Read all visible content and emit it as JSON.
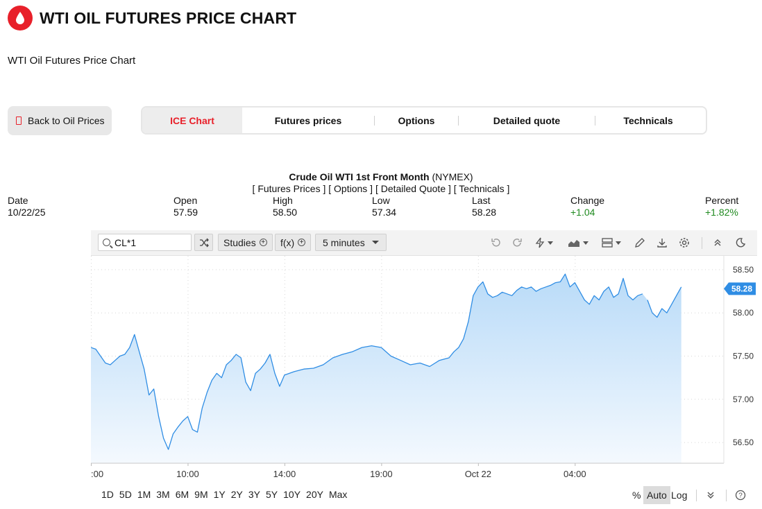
{
  "header": {
    "logo_icon": "oil-drop-icon",
    "title": "WTI OIL FUTURES PRICE CHART",
    "subtitle": "WTI Oil Futures Price Chart",
    "accent_color": "#e8202a"
  },
  "back_button": {
    "label": "Back to Oil Prices"
  },
  "tabs": [
    {
      "label": "ICE Chart",
      "active": true
    },
    {
      "label": "Futures prices"
    },
    {
      "label": "Options"
    },
    {
      "label": "Detailed quote"
    },
    {
      "label": "Technicals"
    }
  ],
  "chart_header": {
    "name": "Crude Oil WTI 1st Front Month",
    "exchange": "(NYMEX)",
    "links": "[ Futures Prices ] [ Options ] [ Detailed Quote ] [ Technicals ]"
  },
  "quote": {
    "date_label": "Date",
    "date": "10/22/25",
    "open_label": "Open",
    "open": "57.59",
    "high_label": "High",
    "high": "58.50",
    "low_label": "Low",
    "low": "57.34",
    "last_label": "Last",
    "last": "58.28",
    "change_label": "Change",
    "change": "+1.04",
    "percent_label": "Percent",
    "percent": "+1.82%"
  },
  "toolbar": {
    "symbol": "CL*1",
    "studies_label": "Studies",
    "fx_label": "f(x)",
    "interval_label": "5 minutes",
    "icons": [
      "shuffle-icon",
      "undo-icon",
      "redo-icon",
      "flash-icon",
      "chart-type-icon",
      "layout-icon",
      "pencil-icon",
      "download-icon",
      "settings-icon",
      "collapse-icon",
      "dark-mode-icon"
    ]
  },
  "periods": [
    "1D",
    "5D",
    "1M",
    "3M",
    "6M",
    "9M",
    "1Y",
    "2Y",
    "3Y",
    "5Y",
    "10Y",
    "20Y",
    "Max"
  ],
  "scale": {
    "percent_label": "%",
    "auto_label": "Auto",
    "log_label": "Log"
  },
  "chart_data": {
    "type": "area",
    "x_tick_labels": [
      ":00",
      "10:00",
      "14:00",
      "19:00",
      "Oct 22",
      "04:00"
    ],
    "y_tick_labels": [
      "58.50",
      "58.00",
      "57.50",
      "57.00",
      "56.50"
    ],
    "y_ticks": [
      58.5,
      58.0,
      57.5,
      57.0,
      56.5
    ],
    "ylim": [
      56.26,
      58.66
    ],
    "x_range": [
      0,
      259
    ],
    "x_ticks": [
      0,
      40,
      80,
      120,
      160,
      200
    ],
    "last_price": "58.28",
    "line_color": "#2f8de4",
    "fill_color": "#cfe6fb",
    "grid": true,
    "series": [
      {
        "x": [
          0,
          2,
          4,
          6,
          8,
          10,
          12,
          14,
          16,
          18,
          20,
          22,
          24,
          26,
          28,
          30,
          32,
          34,
          36,
          38,
          40,
          42,
          44,
          46,
          48,
          50,
          52,
          54,
          56,
          58,
          60,
          62,
          64,
          66,
          68,
          70,
          72,
          74,
          76,
          78,
          80,
          84,
          88,
          92,
          96,
          100,
          104,
          108,
          112,
          116,
          120,
          124,
          128,
          132,
          136,
          140,
          144,
          148,
          150,
          152,
          154,
          156,
          158,
          160,
          162,
          164,
          166,
          168,
          170,
          172,
          174,
          176,
          178,
          180,
          182,
          184,
          186,
          188,
          190,
          192,
          194,
          196,
          198,
          200,
          202,
          204,
          206,
          208,
          210,
          212,
          214,
          216,
          218,
          220,
          222,
          224,
          226,
          228
        ],
        "y": [
          57.6,
          57.58,
          57.5,
          57.42,
          57.4,
          57.45,
          57.5,
          57.52,
          57.6,
          57.75,
          57.55,
          57.35,
          57.05,
          57.12,
          56.8,
          56.55,
          56.42,
          56.6,
          56.68,
          56.75,
          56.8,
          56.65,
          56.62,
          56.9,
          57.08,
          57.22,
          57.3,
          57.25,
          57.4,
          57.45,
          57.52,
          57.48,
          57.2,
          57.1,
          57.3,
          57.35,
          57.42,
          57.52,
          57.3,
          57.15,
          57.28,
          57.32,
          57.35,
          57.36,
          57.4,
          57.48,
          57.52,
          57.55,
          57.6,
          57.62,
          57.6,
          57.5,
          57.45,
          57.4,
          57.42,
          57.38,
          57.45,
          57.48,
          57.55,
          57.6,
          57.7,
          57.9,
          58.2,
          58.3,
          58.36,
          58.22,
          58.18,
          58.2,
          58.24,
          58.22,
          58.2,
          58.26,
          58.3,
          58.28,
          58.3,
          58.25,
          58.28,
          58.3,
          58.32,
          58.35,
          58.36,
          58.45,
          58.3,
          58.35,
          58.25,
          58.15,
          58.1,
          58.2,
          58.15,
          58.25,
          58.3,
          58.18,
          58.22,
          58.4,
          58.2,
          58.15,
          58.2,
          58.22
        ]
      },
      {
        "x": [
          230,
          232,
          234,
          236,
          238,
          240,
          242,
          244
        ],
        "y": [
          58.15,
          58.0,
          57.95,
          58.05,
          58.0,
          58.1,
          58.2,
          58.3
        ]
      }
    ]
  }
}
